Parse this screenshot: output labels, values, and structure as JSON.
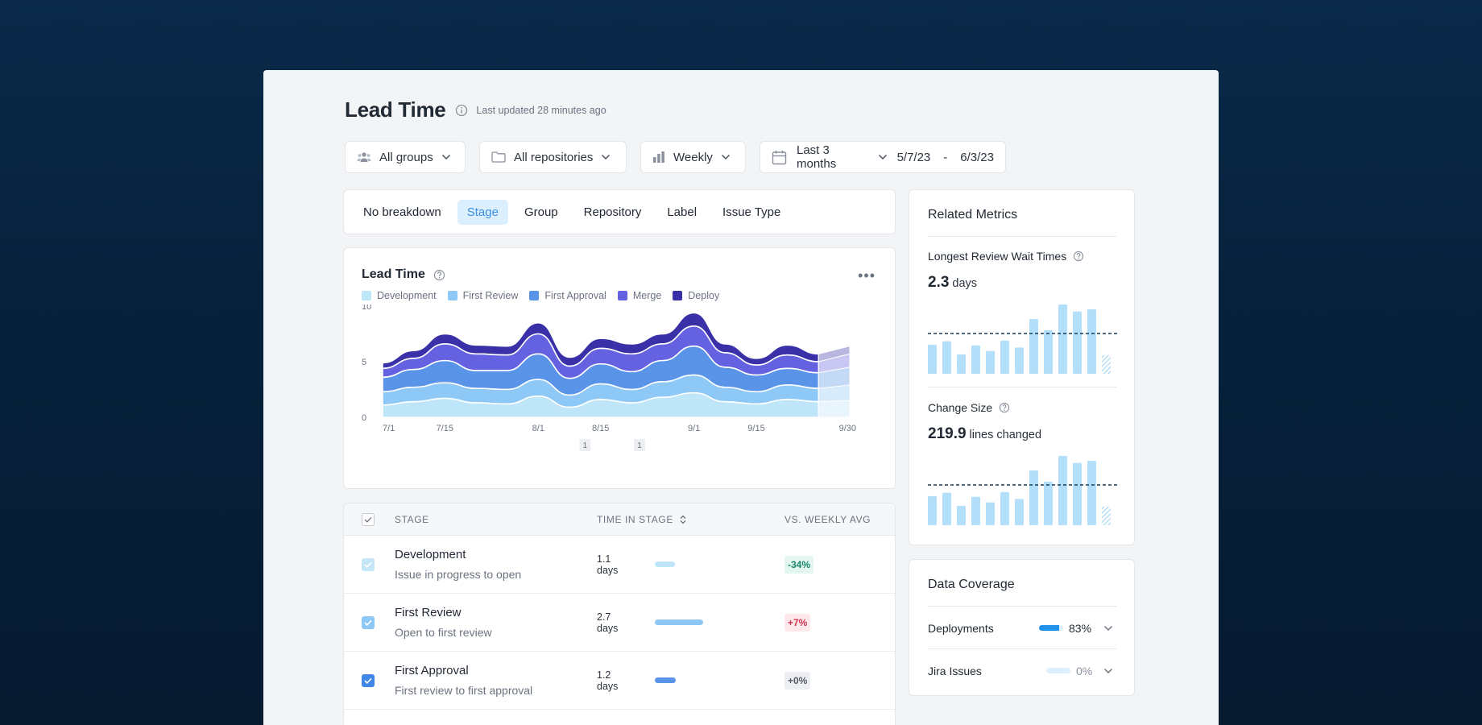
{
  "header": {
    "title": "Lead Time",
    "updated": "Last updated 28 minutes ago"
  },
  "filters": {
    "groups": "All groups",
    "repos": "All repositories",
    "period": "Weekly",
    "range": "Last 3 months",
    "start": "5/7/23",
    "sep": "-",
    "end": "6/3/23"
  },
  "tabs": [
    "No breakdown",
    "Stage",
    "Group",
    "Repository",
    "Label",
    "Issue Type"
  ],
  "active_tab": "Stage",
  "chart": {
    "title": "Lead Time",
    "more": "•••",
    "legend": [
      {
        "name": "Development",
        "color": "#bfe5f8"
      },
      {
        "name": "First Review",
        "color": "#8ec8f6"
      },
      {
        "name": "First Approval",
        "color": "#5a94e8"
      },
      {
        "name": "Merge",
        "color": "#6462e0"
      },
      {
        "name": "Deploy",
        "color": "#3a30a8"
      }
    ],
    "annotations": [
      "1",
      "1"
    ]
  },
  "chart_data": {
    "type": "area",
    "title": "Lead Time",
    "x": [
      "7/1",
      "7/8",
      "7/15",
      "7/22",
      "7/29",
      "8/1",
      "8/8",
      "8/15",
      "8/22",
      "8/29",
      "9/1",
      "9/8",
      "9/15",
      "9/22",
      "9/29",
      "9/30"
    ],
    "xticks": [
      "7/1",
      "7/15",
      "8/1",
      "8/15",
      "9/1",
      "9/15",
      "9/30"
    ],
    "yticks": [
      "0",
      "5",
      "10"
    ],
    "ylim": [
      0,
      10
    ],
    "series": [
      {
        "name": "Development",
        "values": [
          1.1,
          1.4,
          1.7,
          1.3,
          1.2,
          1.9,
          0.9,
          1.6,
          1.3,
          1.8,
          2.2,
          1.4,
          1.2,
          1.6,
          1.4,
          1.5
        ]
      },
      {
        "name": "First Review",
        "values": [
          1.2,
          1.3,
          1.4,
          1.3,
          1.3,
          1.5,
          1.1,
          1.4,
          1.2,
          1.4,
          1.6,
          1.3,
          1.1,
          1.3,
          1.2,
          1.4
        ]
      },
      {
        "name": "First Approval",
        "values": [
          1.3,
          1.6,
          2.0,
          1.6,
          1.7,
          2.3,
          1.5,
          1.8,
          1.6,
          1.9,
          2.6,
          1.8,
          1.5,
          1.5,
          1.4,
          1.6
        ]
      },
      {
        "name": "Merge",
        "values": [
          0.8,
          1.0,
          1.5,
          1.5,
          1.4,
          1.8,
          1.1,
          1.4,
          1.6,
          1.5,
          1.8,
          1.3,
          0.9,
          1.2,
          1.0,
          1.2
        ]
      },
      {
        "name": "Deploy",
        "values": [
          0.5,
          0.7,
          0.9,
          0.8,
          0.8,
          1.0,
          0.8,
          0.9,
          0.9,
          0.9,
          1.2,
          0.8,
          0.6,
          0.9,
          0.7,
          0.7
        ]
      }
    ]
  },
  "table": {
    "headers": [
      "STAGE",
      "TIME IN STAGE",
      "VS. WEEKLY AVG"
    ],
    "rows": [
      {
        "name": "Development",
        "desc": "Issue in progress to open",
        "time": "1.1 days",
        "fraction": 0.41,
        "delta": "-34%",
        "color": "#bfe5f8",
        "delta_fg": "#16866a",
        "delta_bg": "#e3f6ef"
      },
      {
        "name": "First Review",
        "desc": "Open to first review",
        "time": "2.7 days",
        "fraction": 1.0,
        "delta": "+7%",
        "color": "#8ec8f6",
        "delta_fg": "#d0354f",
        "delta_bg": "#fde8ec"
      },
      {
        "name": "First Approval",
        "desc": "First review to first approval",
        "time": "1.2 days",
        "fraction": 0.44,
        "delta": "+0%",
        "color": "#5a94e8",
        "delta_fg": "#555d68",
        "delta_bg": "#eceef1"
      }
    ]
  },
  "related": {
    "title": "Related Metrics",
    "m1": {
      "label": "Longest Review Wait Times",
      "value": "2.3",
      "unit": "days",
      "bars": [
        0.42,
        0.47,
        0.28,
        0.41,
        0.33,
        0.48,
        0.38,
        0.79,
        0.63,
        1.0,
        0.9,
        0.93,
        0.27
      ]
    },
    "m2": {
      "label": "Change Size",
      "value": "219.9",
      "unit": "lines changed",
      "bars": [
        0.42,
        0.47,
        0.28,
        0.41,
        0.33,
        0.48,
        0.38,
        0.79,
        0.63,
        1.0,
        0.9,
        0.93,
        0.27
      ]
    }
  },
  "coverage": {
    "title": "Data Coverage",
    "items": [
      {
        "label": "Deployments",
        "pct": "83%",
        "fraction": 0.83
      },
      {
        "label": "Jira Issues",
        "pct": "0%",
        "fraction": 0
      }
    ]
  }
}
